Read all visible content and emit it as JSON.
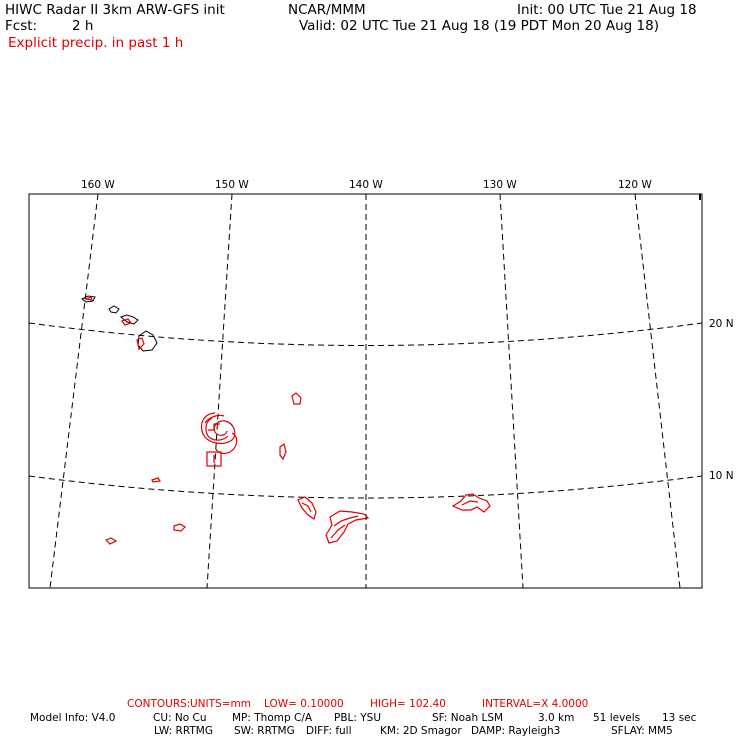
{
  "header": {
    "title": "HIWC Radar II 3km ARW-GFS init",
    "org": "NCAR/MMM",
    "init": "Init: 00 UTC Tue 21 Aug 18",
    "fcst_label": "Fcst:",
    "fcst_value": "2 h",
    "valid": "Valid: 02 UTC Tue 21 Aug 18 (19 PDT Mon 20 Aug 18)",
    "field": "Explicit precip. in past 1 h"
  },
  "map": {
    "longitude_labels": [
      "160 W",
      "150 W",
      "140 W",
      "130 W",
      "120 W"
    ],
    "latitude_labels": [
      "20 N",
      "10 N"
    ],
    "colors": {
      "coast": "#000000",
      "precip": "#e00000",
      "grid": "#000000"
    }
  },
  "footer": {
    "contours": {
      "label": "CONTOURS:",
      "units": "UNITS=mm",
      "low": "LOW= 0.10000",
      "high": "HIGH= 102.40",
      "interval": "INTERVAL=X 4.0000"
    },
    "model_info_line1": {
      "model": "Model Info: V4.0",
      "cu": "CU: No Cu",
      "mp": "MP: Thomp C/A",
      "pbl": "PBL: YSU",
      "sf": "SF: Noah LSM",
      "res": "3.0 km",
      "levels": "51 levels",
      "dt": "13 sec"
    },
    "model_info_line2": {
      "lw": "LW: RRTMG",
      "sw": "SW: RRTMG",
      "diff": "DIFF: full",
      "km": "KM: 2D Smagor",
      "damp": "DAMP: Rayleigh3",
      "sflay": "SFLAY: MM5"
    }
  }
}
